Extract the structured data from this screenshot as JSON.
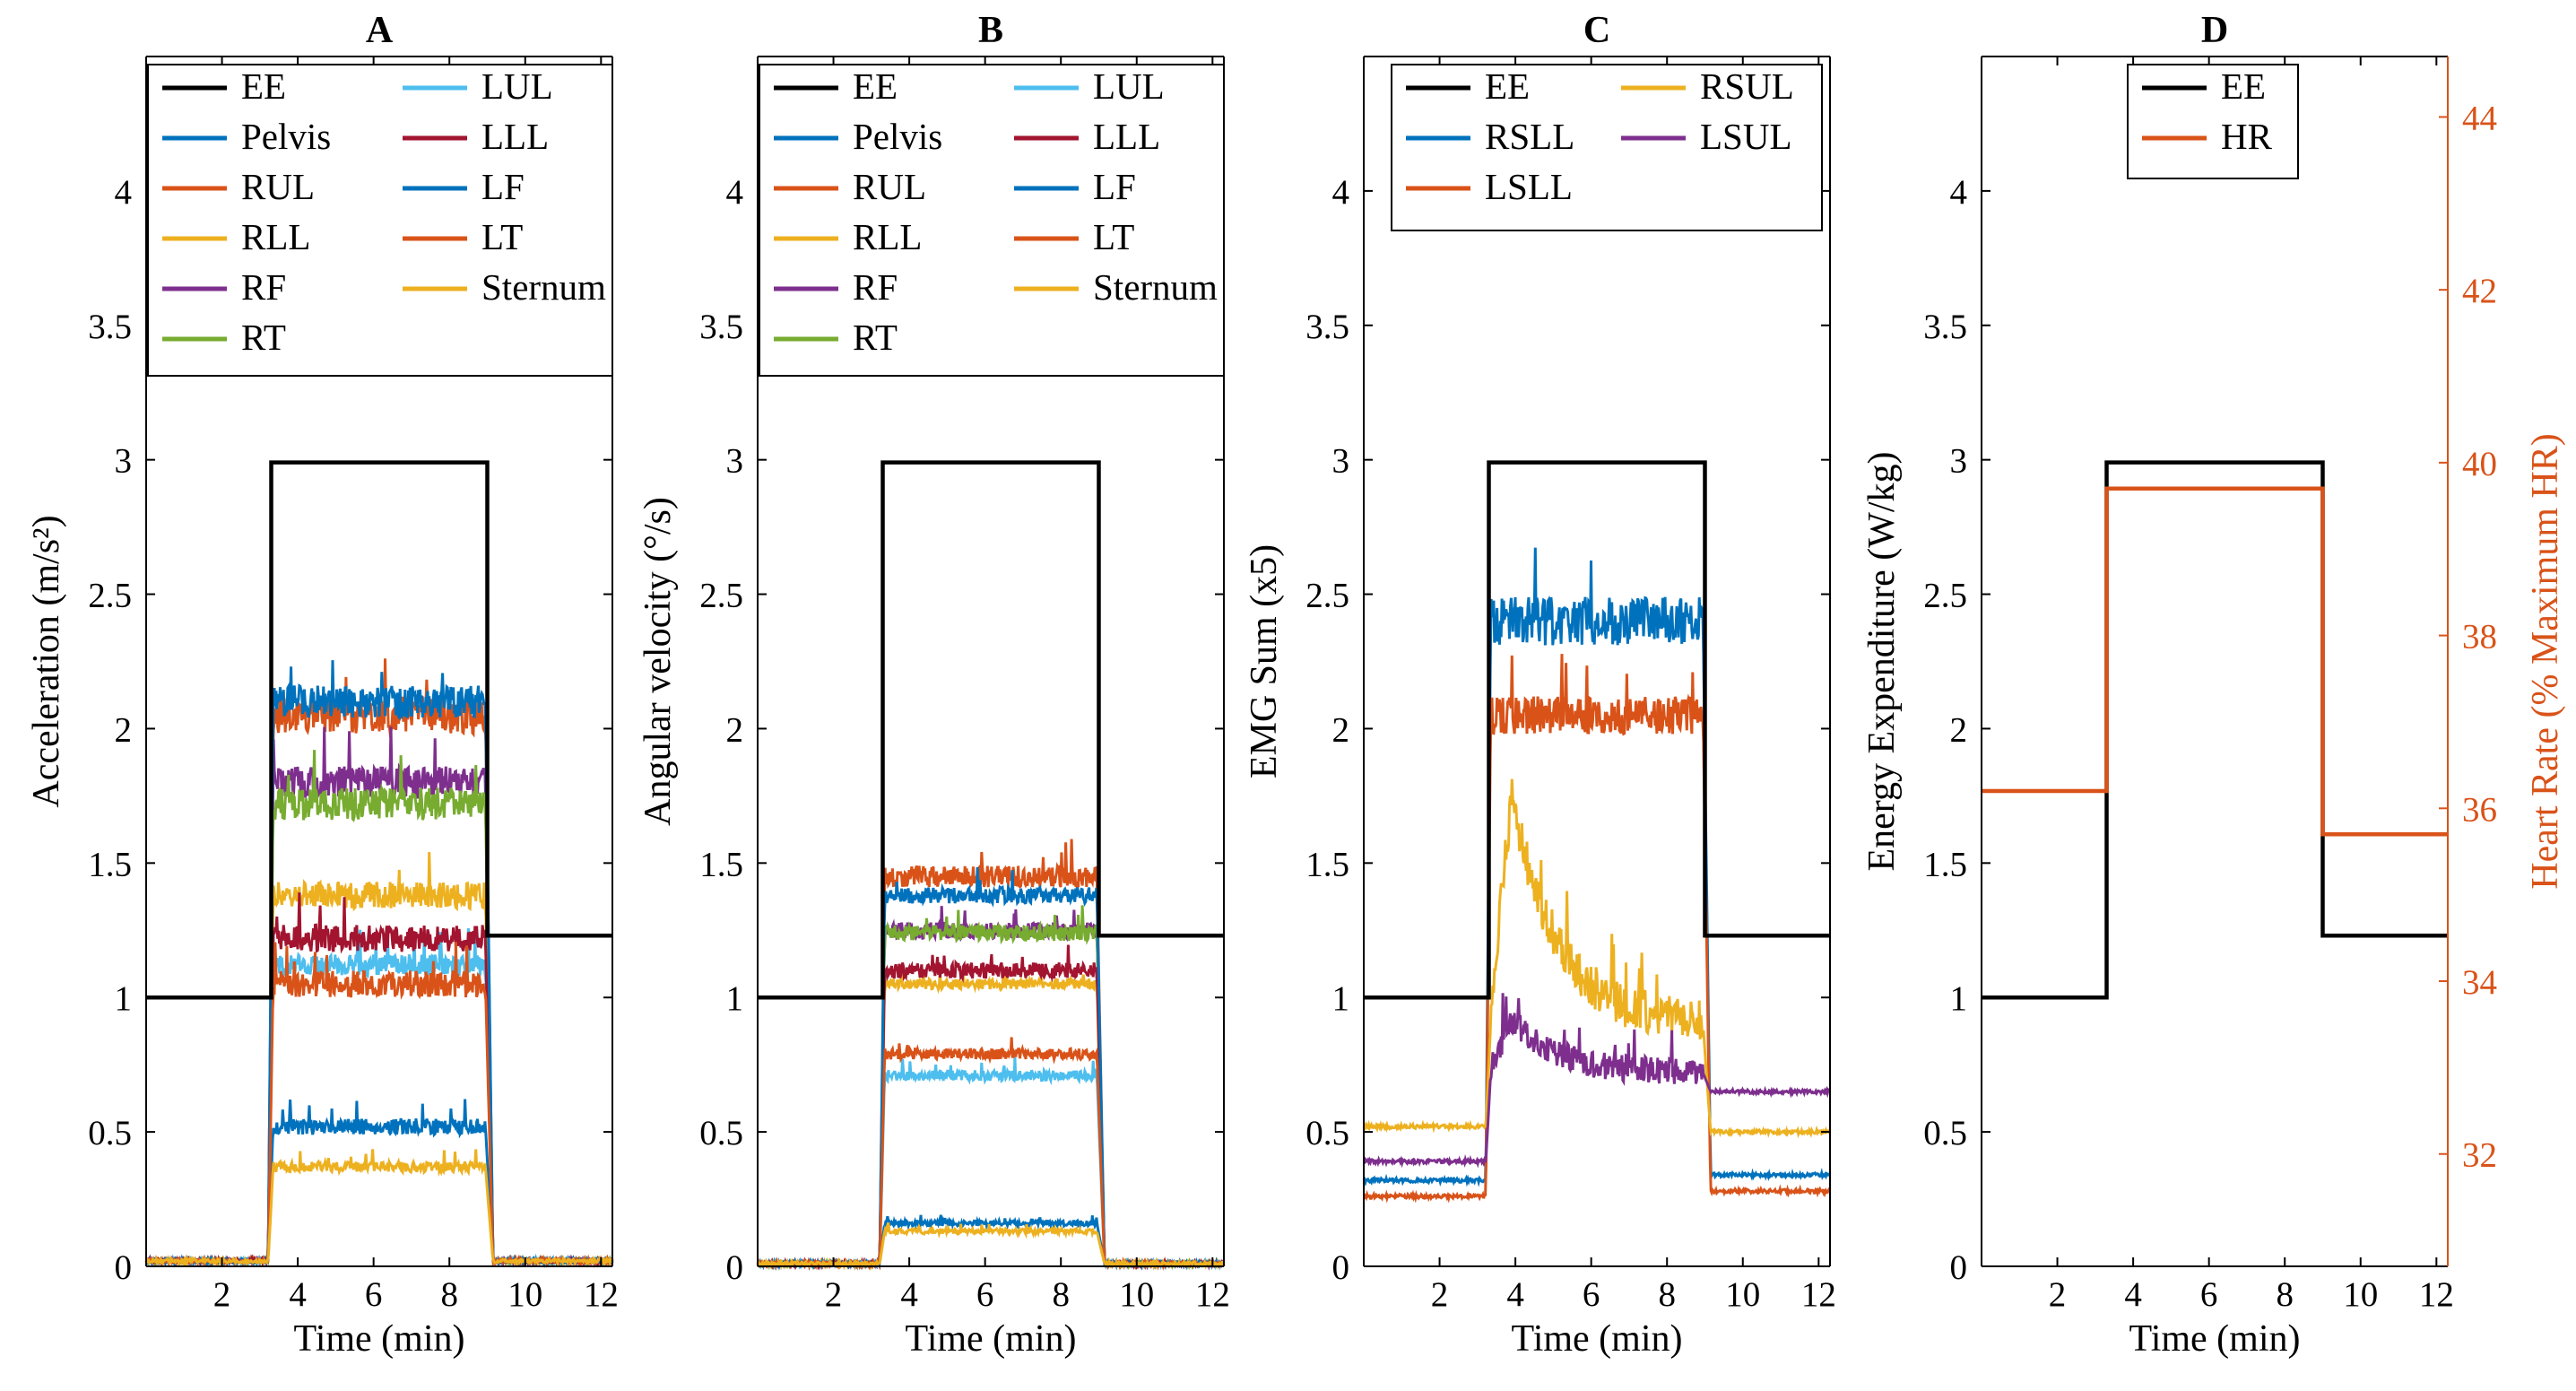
{
  "chart_data": [
    {
      "type": "line",
      "title": "A",
      "xlabel": "Time (min)",
      "ylabel": "Acceleration (m/s²)",
      "xlim": [
        0,
        12.3
      ],
      "ylim": [
        0,
        4.5
      ],
      "xticks": [
        2,
        4,
        6,
        8,
        10,
        12
      ],
      "yticks": [
        0,
        0.5,
        1,
        1.5,
        2,
        2.5,
        3,
        3.5,
        4
      ],
      "grid": false,
      "legend_position": "top",
      "ee": {
        "name": "EE",
        "color": "#000000",
        "x": [
          0,
          3.3,
          3.3,
          9.0,
          9.0,
          12.3
        ],
        "y": [
          1.0,
          1.0,
          2.99,
          2.99,
          1.23,
          1.23
        ]
      },
      "series": [
        {
          "name": "Pelvis",
          "color": "#0072bd",
          "level": 0.52,
          "noise": 0.03,
          "base": 0.02
        },
        {
          "name": "RUL",
          "color": "#d95319",
          "level": 2.05,
          "noise": 0.07,
          "base": 0.02
        },
        {
          "name": "RLL",
          "color": "#edb120",
          "level": 1.38,
          "noise": 0.05,
          "base": 0.02
        },
        {
          "name": "RF",
          "color": "#7e2f8e",
          "level": 1.8,
          "noise": 0.06,
          "base": 0.02
        },
        {
          "name": "RT",
          "color": "#77ac30",
          "level": 1.72,
          "noise": 0.06,
          "base": 0.02
        },
        {
          "name": "LUL",
          "color": "#4dbeee",
          "level": 1.12,
          "noise": 0.04,
          "base": 0.02
        },
        {
          "name": "LLL",
          "color": "#a2142f",
          "level": 1.22,
          "noise": 0.05,
          "base": 0.02
        },
        {
          "name": "LF",
          "color": "#0072bd",
          "level": 2.1,
          "noise": 0.06,
          "base": 0.02
        },
        {
          "name": "LT",
          "color": "#d95319",
          "level": 1.05,
          "noise": 0.05,
          "base": 0.02
        },
        {
          "name": "Sternum",
          "color": "#edb120",
          "level": 0.37,
          "noise": 0.02,
          "base": 0.02
        }
      ]
    },
    {
      "type": "line",
      "title": "B",
      "xlabel": "Time (min)",
      "ylabel": "Angular velocity (°/s)",
      "xlim": [
        0,
        12.3
      ],
      "ylim": [
        0,
        4.5
      ],
      "xticks": [
        2,
        4,
        6,
        8,
        10,
        12
      ],
      "yticks": [
        0,
        0.5,
        1,
        1.5,
        2,
        2.5,
        3,
        3.5,
        4
      ],
      "grid": false,
      "legend_position": "top",
      "ee": {
        "name": "EE",
        "color": "#000000",
        "x": [
          0,
          3.3,
          3.3,
          9.0,
          9.0,
          12.3
        ],
        "y": [
          1.0,
          1.0,
          2.99,
          2.99,
          1.23,
          1.23
        ]
      },
      "series": [
        {
          "name": "Pelvis",
          "color": "#0072bd",
          "level": 0.16,
          "noise": 0.01,
          "base": 0.01
        },
        {
          "name": "RUL",
          "color": "#d95319",
          "level": 1.45,
          "noise": 0.04,
          "base": 0.01
        },
        {
          "name": "RLL",
          "color": "#edb120",
          "level": 1.05,
          "noise": 0.02,
          "base": 0.01
        },
        {
          "name": "RF",
          "color": "#7e2f8e",
          "level": 1.25,
          "noise": 0.03,
          "base": 0.01
        },
        {
          "name": "RT",
          "color": "#77ac30",
          "level": 1.24,
          "noise": 0.03,
          "base": 0.01
        },
        {
          "name": "LUL",
          "color": "#4dbeee",
          "level": 0.71,
          "noise": 0.02,
          "base": 0.01
        },
        {
          "name": "LLL",
          "color": "#a2142f",
          "level": 1.1,
          "noise": 0.03,
          "base": 0.01
        },
        {
          "name": "LF",
          "color": "#0072bd",
          "level": 1.38,
          "noise": 0.03,
          "base": 0.01
        },
        {
          "name": "LT",
          "color": "#d95319",
          "level": 0.79,
          "noise": 0.02,
          "base": 0.01
        },
        {
          "name": "Sternum",
          "color": "#edb120",
          "level": 0.13,
          "noise": 0.01,
          "base": 0.01
        }
      ]
    },
    {
      "type": "line",
      "title": "C",
      "xlabel": "Time (min)",
      "ylabel": "EMG Sum (x5)",
      "xlim": [
        0,
        12.3
      ],
      "ylim": [
        0,
        4.5
      ],
      "xticks": [
        2,
        4,
        6,
        8,
        10,
        12
      ],
      "yticks": [
        0,
        0.5,
        1,
        1.5,
        2,
        2.5,
        3,
        3.5,
        4
      ],
      "grid": false,
      "legend_position": "top",
      "ee": {
        "name": "EE",
        "color": "#000000",
        "x": [
          0,
          3.3,
          3.3,
          9.0,
          9.0,
          12.3
        ],
        "y": [
          1.0,
          1.0,
          2.99,
          2.99,
          1.23,
          1.23
        ]
      },
      "series": [
        {
          "name": "RSLL",
          "color": "#0072bd",
          "level": 2.4,
          "noise": 0.09,
          "base": 0.32,
          "post": 0.34
        },
        {
          "name": "LSLL",
          "color": "#d95319",
          "level": 2.05,
          "noise": 0.07,
          "base": 0.26,
          "post": 0.28
        },
        {
          "name": "RSUL",
          "color": "#edb120",
          "level": 0.9,
          "noise": 0.08,
          "base": 0.52,
          "post": 0.5,
          "peak": 1.75
        },
        {
          "name": "LSUL",
          "color": "#7e2f8e",
          "level": 0.72,
          "noise": 0.05,
          "base": 0.39,
          "post": 0.65,
          "peak": 0.92
        }
      ]
    },
    {
      "type": "line",
      "title": "D",
      "xlabel": "Time (min)",
      "ylabel": "Energy Expenditure (W/kg)",
      "y2label": "Heart Rate (% Maximum HR)",
      "xlim": [
        0,
        12.3
      ],
      "ylim": [
        0,
        4.5
      ],
      "y2lim": [
        30.7,
        44.7
      ],
      "xticks": [
        2,
        4,
        6,
        8,
        10,
        12
      ],
      "yticks": [
        0,
        0.5,
        1,
        1.5,
        2,
        2.5,
        3,
        3.5,
        4
      ],
      "y2ticks": [
        32,
        34,
        36,
        38,
        40,
        42,
        44
      ],
      "grid": false,
      "legend_position": "top",
      "ee": {
        "name": "EE",
        "color": "#000000",
        "x": [
          0,
          3.3,
          3.3,
          9.0,
          9.0,
          12.3
        ],
        "y": [
          1.0,
          1.0,
          2.99,
          2.99,
          1.23,
          1.23
        ]
      },
      "hr": {
        "name": "HR",
        "color": "#d95319",
        "x": [
          0,
          3.3,
          3.3,
          9.0,
          9.0,
          12.3
        ],
        "y": [
          36.2,
          36.2,
          39.7,
          39.7,
          35.7,
          35.7
        ]
      },
      "series": []
    }
  ]
}
